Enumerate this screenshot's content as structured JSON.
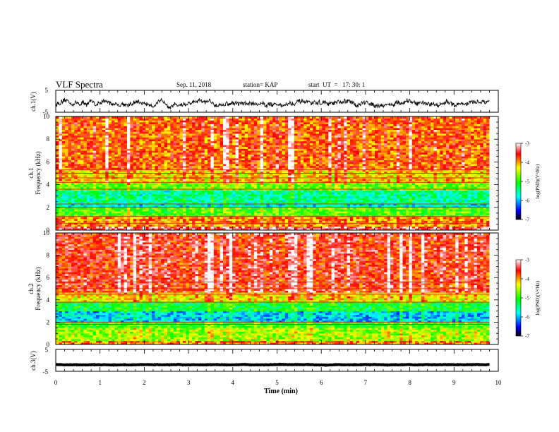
{
  "header": {
    "title": "VLF Spectra",
    "date": "Sep. 11, 2018",
    "station": "station= KAP",
    "start": "start  UT  =   17: 30: 1"
  },
  "chart_data": [
    {
      "type": "line",
      "name": "ch1-waveform",
      "ylabel": "ch.1(V)",
      "ylim": [
        -5,
        5
      ],
      "yticks": [
        "5",
        "-5"
      ],
      "xlim": [
        0,
        10
      ],
      "description_series": "noisy waveform, approx -3 to 1 V",
      "y_mean": -1.0,
      "y_noise": 1.8
    },
    {
      "type": "heatmap",
      "name": "ch1-spectrogram",
      "ylabel": "ch.1\nFrequency (kHz)",
      "ylabel_lines": [
        "ch.1",
        "Frequency (kHz)"
      ],
      "xlim": [
        0,
        10
      ],
      "ylim": [
        0,
        10
      ],
      "yticks": [
        "0",
        "2",
        "4",
        "6",
        "8",
        "10"
      ],
      "data_end_min": 9.8,
      "colorbar": {
        "label": "log(PSD)(V²/Hz)",
        "range": [
          -7,
          -3
        ],
        "ticks": [
          "-3",
          "-4",
          "-5",
          "-6",
          "-7"
        ]
      },
      "bands_khz": [
        {
          "from": 0.0,
          "to": 0.3,
          "level": -3.4
        },
        {
          "from": 0.3,
          "to": 1.2,
          "level": -4.0
        },
        {
          "from": 1.2,
          "to": 2.0,
          "level": -4.9
        },
        {
          "from": 2.0,
          "to": 2.3,
          "level": -5.8
        },
        {
          "from": 2.3,
          "to": 3.5,
          "level": -5.5
        },
        {
          "from": 3.5,
          "to": 4.2,
          "level": -4.8
        },
        {
          "from": 4.2,
          "to": 5.3,
          "level": -4.2
        },
        {
          "from": 5.3,
          "to": 10.0,
          "level": -3.8
        }
      ],
      "lines_khz": [
        0.6,
        1.2,
        2.0,
        2.3,
        3.6,
        4.2,
        4.6,
        5.0,
        5.3
      ]
    },
    {
      "type": "heatmap",
      "name": "ch2-spectrogram",
      "ylabel": "ch.2\nFrequency (kHz)",
      "ylabel_lines": [
        "ch.2",
        "Frequency (kHz)"
      ],
      "xlim": [
        0,
        10
      ],
      "ylim": [
        0,
        10
      ],
      "yticks": [
        "0",
        "2",
        "4",
        "6",
        "8",
        "10"
      ],
      "data_end_min": 9.8,
      "colorbar": {
        "label": "log(PSD)(V²/Hz)",
        "range": [
          -7,
          -3
        ],
        "ticks": [
          "-3",
          "-4",
          "-5",
          "-6",
          "-7"
        ]
      },
      "bands_khz": [
        {
          "from": 0.0,
          "to": 0.3,
          "level": -4.0
        },
        {
          "from": 0.3,
          "to": 1.5,
          "level": -4.6
        },
        {
          "from": 1.5,
          "to": 2.0,
          "level": -5.0
        },
        {
          "from": 2.0,
          "to": 3.0,
          "level": -5.9
        },
        {
          "from": 3.0,
          "to": 3.8,
          "level": -5.2
        },
        {
          "from": 3.8,
          "to": 4.6,
          "level": -4.3
        },
        {
          "from": 4.6,
          "to": 10.0,
          "level": -3.6
        }
      ],
      "lines_khz": [
        1.8,
        2.0,
        3.8,
        4.5,
        5.0,
        5.6
      ]
    },
    {
      "type": "line",
      "name": "ch3-waveform",
      "ylabel": "ch.3(V)",
      "ylim": [
        -5,
        5
      ],
      "yticks": [
        "5",
        "-5"
      ],
      "xlim": [
        0,
        10
      ],
      "y_mean": -2.0,
      "y_noise": 0.15
    }
  ],
  "xaxis": {
    "label": "Time (min)",
    "ticks": [
      "0",
      "1",
      "2",
      "3",
      "4",
      "5",
      "6",
      "7",
      "8",
      "9",
      "10"
    ]
  }
}
